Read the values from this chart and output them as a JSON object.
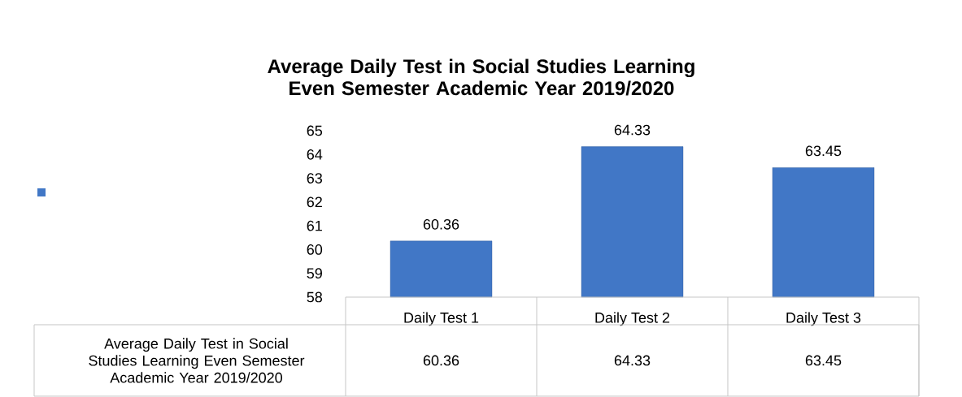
{
  "chart_data": {
    "type": "bar",
    "title": "Average Daily Test in Social Studies Learning Even Semester Academic Year 2019/2020",
    "categories": [
      "Daily Test 1",
      "Daily Test 2",
      "Daily Test 3"
    ],
    "series": [
      {
        "name": "Average Daily Test in Social Studies Learning Even Semester Academic Year 2019/2020",
        "color": "#4177c6",
        "values": [
          60.36,
          64.33,
          63.45
        ],
        "value_labels": [
          "60.36",
          "64.33",
          "63.45"
        ]
      }
    ],
    "ylim": [
      58,
      65
    ],
    "yticks": [
      58,
      59,
      60,
      61,
      62,
      63,
      64,
      65
    ],
    "data_labels": true,
    "legend": "bottom",
    "grid": false
  }
}
